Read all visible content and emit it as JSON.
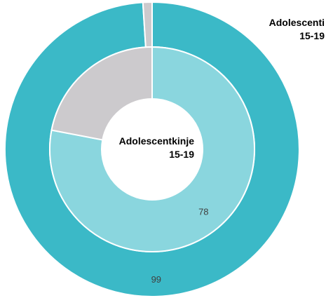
{
  "chart_data": {
    "type": "pie",
    "subtype": "nested-donut",
    "rings": [
      {
        "name_lines": [
          "Adolescenti",
          "15-19"
        ],
        "position": "outer",
        "slices": [
          {
            "value": 99,
            "label": "99",
            "color": "#3BB9C7"
          },
          {
            "value": 1,
            "label": "",
            "color": "#CCCACD"
          }
        ]
      },
      {
        "name_lines": [
          "Adolescentkinje",
          "15-19"
        ],
        "position": "inner",
        "slices": [
          {
            "value": 78,
            "label": "78",
            "color": "#8AD6DE"
          },
          {
            "value": 22,
            "label": "",
            "color": "#CCCACD"
          }
        ]
      }
    ],
    "legend": "none"
  }
}
